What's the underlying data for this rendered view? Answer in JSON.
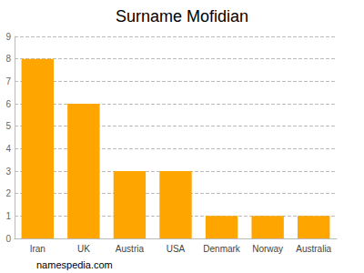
{
  "chart_data": {
    "type": "bar",
    "title": "Surname Mofidian",
    "categories": [
      "Iran",
      "UK",
      "Austria",
      "USA",
      "Denmark",
      "Norway",
      "Australia"
    ],
    "values": [
      8,
      6,
      3,
      3,
      1,
      1,
      1
    ],
    "color": "#ffa500",
    "ylim": [
      0,
      9
    ],
    "yticks": [
      0,
      1,
      2,
      3,
      4,
      5,
      6,
      7,
      8,
      9
    ],
    "grid": true,
    "annotation": "namespedia.com"
  }
}
